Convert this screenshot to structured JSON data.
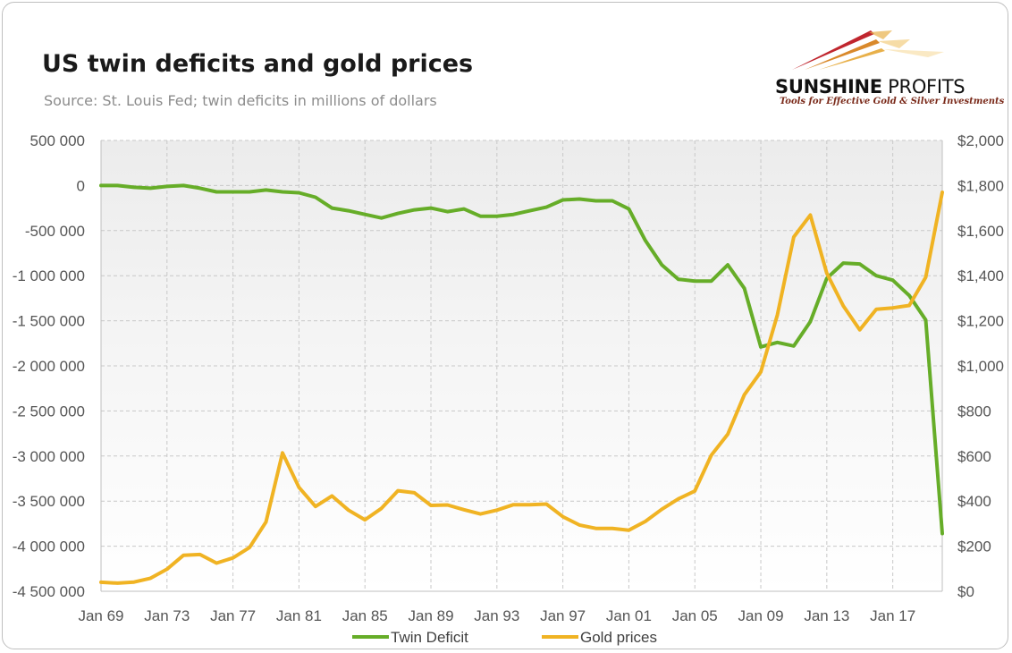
{
  "header": {
    "title": "US twin deficits and gold prices",
    "subtitle": "Source: St. Louis Fed; twin deficits in millions of dollars"
  },
  "logo": {
    "name_bold": "SUNSHINE",
    "name_light": " PROFITS",
    "tagline": "Tools for Effective Gold & Silver Investments"
  },
  "chart_data": {
    "type": "line",
    "title": "US twin deficits and gold prices",
    "subtitle": "Source: St. Louis Fed; twin deficits in millions of dollars",
    "x": [
      1969,
      1970,
      1971,
      1972,
      1973,
      1974,
      1975,
      1976,
      1977,
      1978,
      1979,
      1980,
      1981,
      1982,
      1983,
      1984,
      1985,
      1986,
      1987,
      1988,
      1989,
      1990,
      1991,
      1992,
      1993,
      1994,
      1995,
      1996,
      1997,
      1998,
      1999,
      2000,
      2001,
      2002,
      2003,
      2004,
      2005,
      2006,
      2007,
      2008,
      2009,
      2010,
      2011,
      2012,
      2013,
      2014,
      2015,
      2016,
      2017,
      2018,
      2019,
      2020
    ],
    "x_tick_labels": [
      "Jan 69",
      "Jan 73",
      "Jan 77",
      "Jan 81",
      "Jan 85",
      "Jan 89",
      "Jan 93",
      "Jan 97",
      "Jan 01",
      "Jan 05",
      "Jan 09",
      "Jan 13",
      "Jan 17"
    ],
    "x_tick_values": [
      1969,
      1973,
      1977,
      1981,
      1985,
      1989,
      1993,
      1997,
      2001,
      2005,
      2009,
      2013,
      2017
    ],
    "y_left": {
      "ylim": [
        -4500000,
        500000
      ],
      "tick_values": [
        500000,
        0,
        -500000,
        -1000000,
        -1500000,
        -2000000,
        -2500000,
        -3000000,
        -3500000,
        -4000000,
        -4500000
      ],
      "tick_labels": [
        "500 000",
        "0",
        "-500 000",
        "-1 000 000",
        "-1 500 000",
        "-2 000 000",
        "-2 500 000",
        "-3 000 000",
        "-3 500 000",
        "-4 000 000",
        "-4 500 000"
      ]
    },
    "y_right": {
      "ylim": [
        0,
        2000
      ],
      "tick_values": [
        2000,
        1800,
        1600,
        1400,
        1200,
        1000,
        800,
        600,
        400,
        200,
        0
      ],
      "tick_labels": [
        "$2,000",
        "$1,800",
        "$1,600",
        "$1,400",
        "$1,200",
        "$1,000",
        "$800",
        "$600",
        "$400",
        "$200",
        "$0"
      ]
    },
    "grid": true,
    "legend_position": "bottom",
    "series": [
      {
        "name": "Twin Deficit",
        "axis": "left",
        "color": "#66ad28",
        "values": [
          0,
          0,
          -20000,
          -30000,
          -10000,
          0,
          -30000,
          -70000,
          -70000,
          -70000,
          -50000,
          -70000,
          -80000,
          -130000,
          -250000,
          -280000,
          -320000,
          -360000,
          -310000,
          -270000,
          -250000,
          -290000,
          -260000,
          -340000,
          -340000,
          -320000,
          -280000,
          -240000,
          -160000,
          -150000,
          -170000,
          -170000,
          -260000,
          -610000,
          -880000,
          -1040000,
          -1060000,
          -1060000,
          -880000,
          -1140000,
          -1790000,
          -1740000,
          -1780000,
          -1510000,
          -1030000,
          -860000,
          -870000,
          -1000000,
          -1050000,
          -1220000,
          -1490000,
          -3860000
        ]
      },
      {
        "name": "Gold prices",
        "axis": "right",
        "color": "#f0b323",
        "values": [
          40,
          36,
          41,
          58,
          98,
          160,
          163,
          125,
          148,
          194,
          307,
          614,
          461,
          376,
          423,
          360,
          317,
          368,
          446,
          437,
          381,
          383,
          362,
          343,
          360,
          384,
          384,
          387,
          331,
          294,
          279,
          279,
          271,
          310,
          364,
          410,
          445,
          604,
          697,
          872,
          973,
          1225,
          1572,
          1669,
          1411,
          1266,
          1160,
          1251,
          1257,
          1268,
          1393,
          1770
        ]
      }
    ]
  }
}
